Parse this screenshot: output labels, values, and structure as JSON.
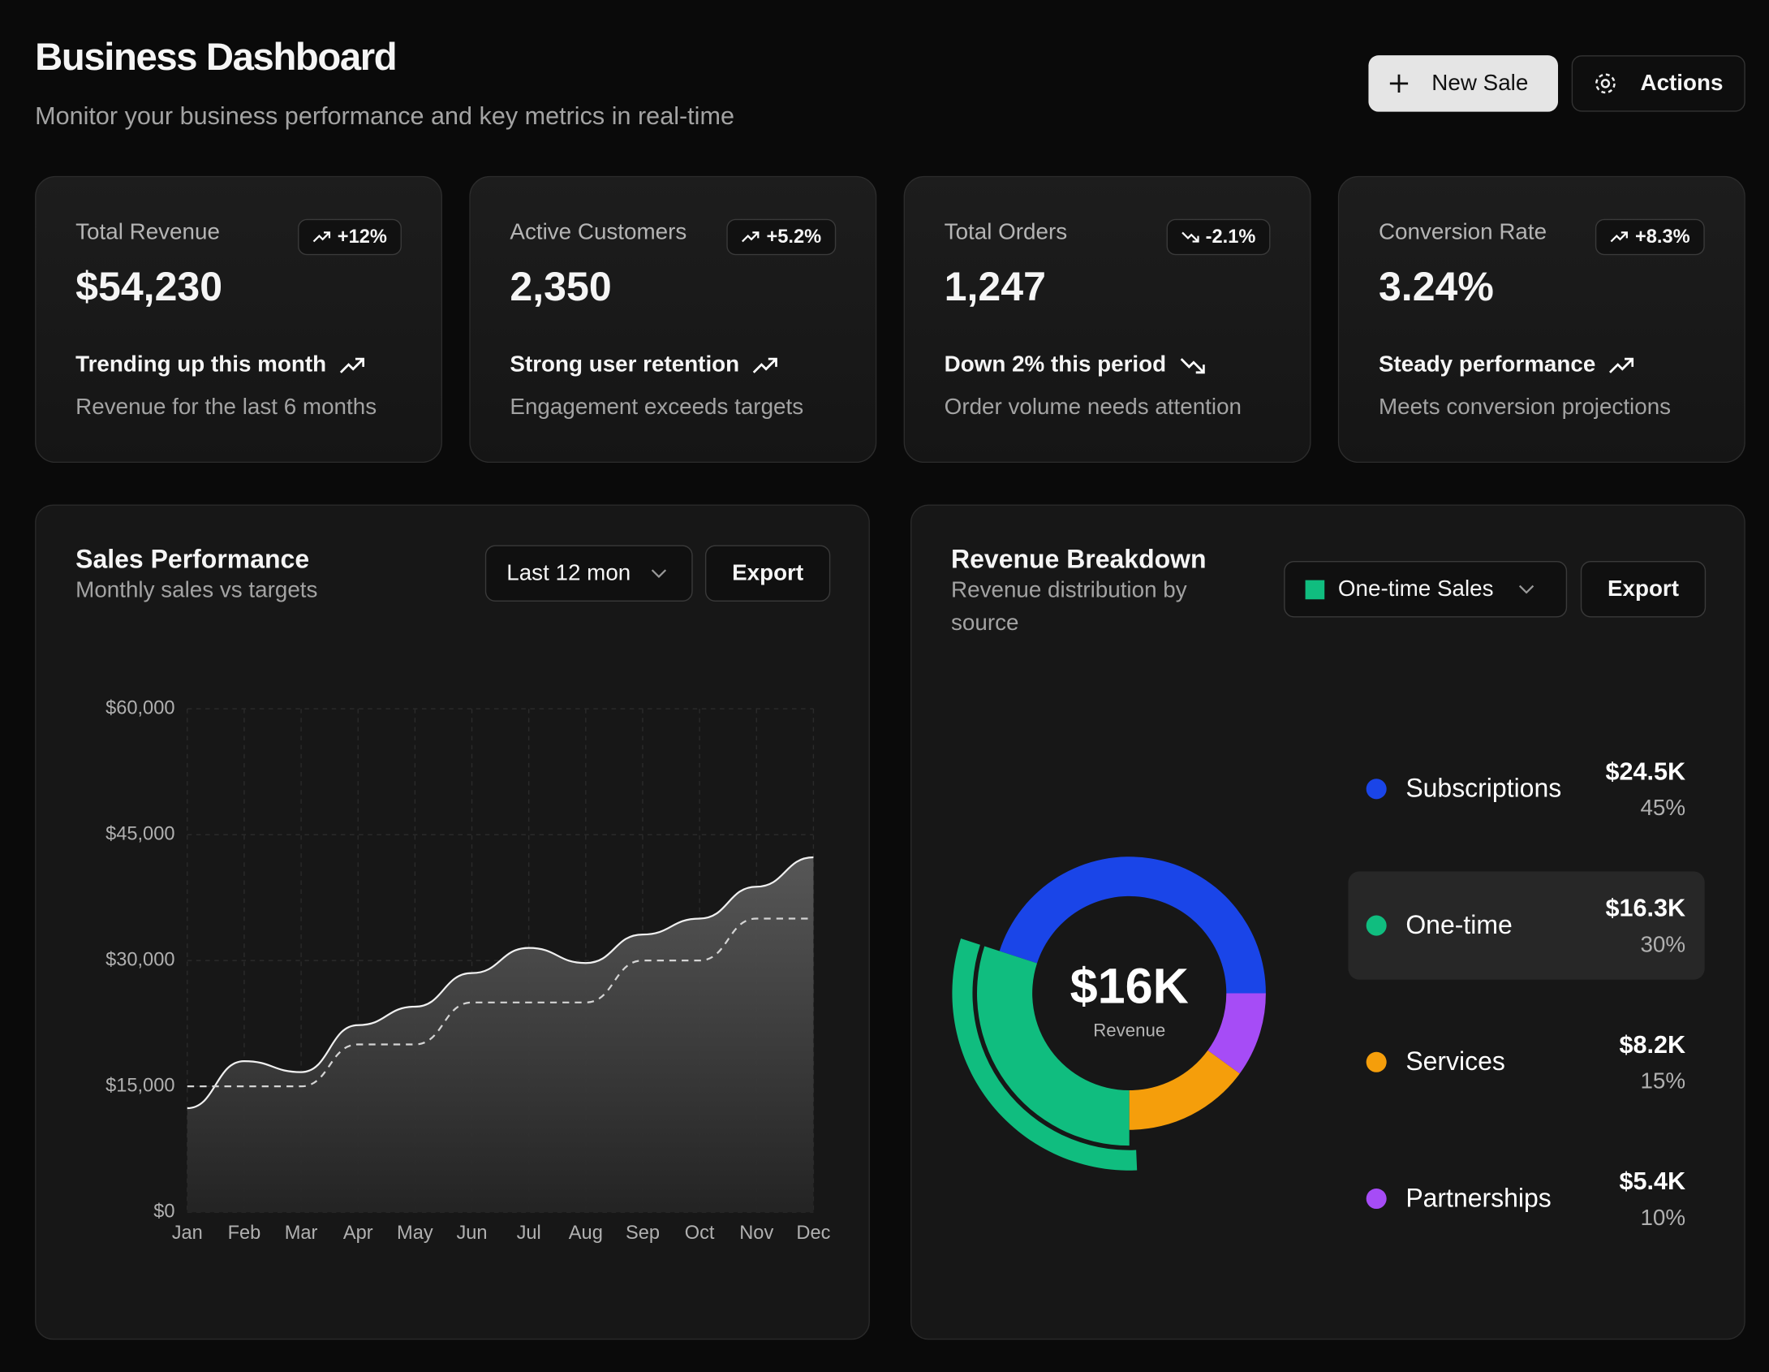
{
  "header": {
    "title": "Business Dashboard",
    "subtitle": "Monitor your business performance and key metrics in real-time"
  },
  "buttons": {
    "new_sale": "New Sale",
    "actions": "Actions"
  },
  "cards": [
    {
      "label": "Total Revenue",
      "badge": "+12%",
      "value": "$54,230",
      "trend": "Trending up this month",
      "note": "Revenue for the last 6 months"
    },
    {
      "label": "Active Customers",
      "badge": "+5.2%",
      "value": "2,350",
      "trend": "Strong user retention",
      "note": "Engagement exceeds targets"
    },
    {
      "label": "Total Orders",
      "badge": "-2.1%",
      "value": "1,247",
      "trend": "Down 2% this period",
      "note": "Order volume needs attention"
    },
    {
      "label": "Conversion Rate",
      "badge": "+8.3%",
      "value": "3.24%",
      "trend": "Steady performance",
      "note": "Meets conversion projections"
    }
  ],
  "chart_data": [
    {
      "type": "line",
      "title": "Sales Performance",
      "subtitle": "Monthly sales vs targets",
      "range_select": "Last 12 mon",
      "export": "Export",
      "categories": [
        "Jan",
        "Feb",
        "Mar",
        "Apr",
        "May",
        "Jun",
        "Jul",
        "Aug",
        "Sep",
        "Oct",
        "Nov",
        "Dec"
      ],
      "series": [
        {
          "color": "#f0f0f0",
          "values": [
            12400,
            18000,
            16700,
            22300,
            24500,
            28500,
            31500,
            29700,
            33100,
            35000,
            38800,
            42300
          ]
        },
        {
          "color": "#d4d4d4",
          "dashed": true,
          "values": [
            15000,
            15000,
            15000,
            20000,
            20000,
            25000,
            25000,
            25000,
            30000,
            30000,
            35000,
            35000
          ]
        }
      ],
      "ylim": [
        0,
        60000
      ],
      "yticks": [
        {
          "value": 0,
          "label": "$0"
        },
        {
          "value": 15000,
          "label": "$15,000"
        },
        {
          "value": 30000,
          "label": "$30,000"
        },
        {
          "value": 45000,
          "label": "$45,000"
        },
        {
          "value": 60000,
          "label": "$60,000"
        }
      ],
      "grid": true
    },
    {
      "type": "donut",
      "title": "Revenue Breakdown",
      "subtitle": "Revenue distribution by source",
      "source_select": "One-time Sales",
      "export": "Export",
      "center_value": "$16K",
      "center_label": "Revenue",
      "categories": [
        "Subscriptions",
        "One-time",
        "Services",
        "Partnerships"
      ],
      "values": [
        45,
        30,
        15,
        10
      ],
      "value_labels": [
        "45%",
        "30%",
        "15%",
        "10%"
      ],
      "amounts": [
        24500,
        16300,
        8200,
        5400
      ],
      "amount_labels": [
        "$24.5K",
        "$16.3K",
        "$8.2K",
        "$5.4K"
      ],
      "colors": [
        "#1a45e8",
        "#10bd7f",
        "#f59e0b",
        "#a64cf6"
      ],
      "active": 1
    }
  ]
}
